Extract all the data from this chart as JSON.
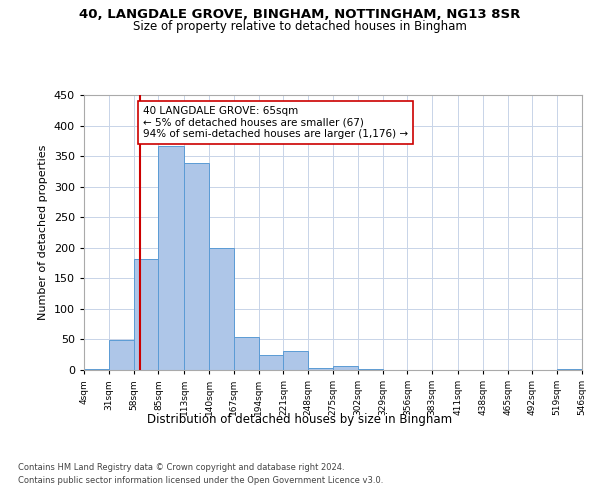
{
  "title1": "40, LANGDALE GROVE, BINGHAM, NOTTINGHAM, NG13 8SR",
  "title2": "Size of property relative to detached houses in Bingham",
  "xlabel": "Distribution of detached houses by size in Bingham",
  "ylabel": "Number of detached properties",
  "bar_edges": [
    4,
    31,
    58,
    85,
    113,
    140,
    167,
    194,
    221,
    248,
    275,
    302,
    329,
    356,
    383,
    411,
    438,
    465,
    492,
    519,
    546
  ],
  "bar_heights": [
    1,
    49,
    181,
    367,
    339,
    199,
    54,
    25,
    31,
    3,
    6,
    1,
    0,
    0,
    0,
    0,
    0,
    0,
    0,
    1
  ],
  "bar_color": "#aec6e8",
  "bar_edge_color": "#5b9bd5",
  "property_line_x": 65,
  "property_line_color": "#cc0000",
  "annotation_text": "40 LANGDALE GROVE: 65sqm\n← 5% of detached houses are smaller (67)\n94% of semi-detached houses are larger (1,176) →",
  "annotation_box_color": "#ffffff",
  "annotation_box_edge_color": "#cc0000",
  "ylim": [
    0,
    450
  ],
  "yticks": [
    0,
    50,
    100,
    150,
    200,
    250,
    300,
    350,
    400,
    450
  ],
  "footer1": "Contains HM Land Registry data © Crown copyright and database right 2024.",
  "footer2": "Contains public sector information licensed under the Open Government Licence v3.0.",
  "bg_color": "#ffffff",
  "grid_color": "#c8d4e8",
  "tick_labels": [
    "4sqm",
    "31sqm",
    "58sqm",
    "85sqm",
    "113sqm",
    "140sqm",
    "167sqm",
    "194sqm",
    "221sqm",
    "248sqm",
    "275sqm",
    "302sqm",
    "329sqm",
    "356sqm",
    "383sqm",
    "411sqm",
    "438sqm",
    "465sqm",
    "492sqm",
    "519sqm",
    "546sqm"
  ]
}
